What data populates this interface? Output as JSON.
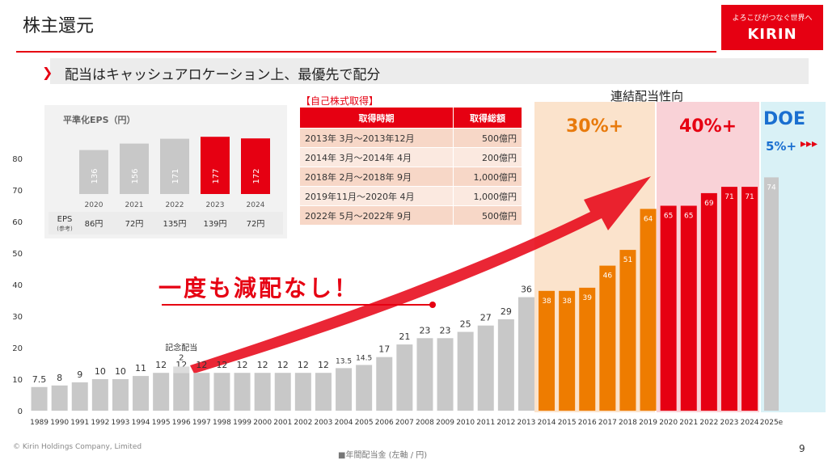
{
  "title": "株主還元",
  "logo": {
    "tagline": "よろこびがつなぐ世界へ",
    "wordmark": "KIRIN"
  },
  "subtitle": "配当はキャッシュアロケーション上、最優先で配分",
  "payout_heading": "連結配当性向",
  "payout_bands": {
    "band1": "30%+",
    "band2": "40%+",
    "doe_title": "DOE",
    "doe_value": "5%+",
    "doe_arrows": "▸▸▸"
  },
  "slogan": "一度も減配なし！",
  "commemorative_label": "記念配当",
  "buyback": {
    "title": "【自己株式取得】",
    "headers": [
      "取得時期",
      "取得総額"
    ],
    "rows": [
      {
        "period": "2013年 3月～2013年12月",
        "amount": "500億円"
      },
      {
        "period": "2014年 3月～2014年 4月",
        "amount": "200億円"
      },
      {
        "period": "2018年 2月～2018年 9月",
        "amount": "1,000億円"
      },
      {
        "period": "2019年11月～2020年 4月",
        "amount": "1,000億円"
      },
      {
        "period": "2022年 5月～2022年 9月",
        "amount": "500億円"
      }
    ]
  },
  "footer": {
    "copyright": "© Kirin Holdings Company, Limited",
    "legend": "■年間配当金 (左軸 / 円)",
    "page_number": "9"
  },
  "colors": {
    "brand_red": "#e60012",
    "orange": "#ee7c00",
    "grey": "#c8c8c8",
    "doe_blue": "#1a6fd0"
  },
  "chart_data": [
    {
      "type": "bar",
      "ylim": [
        0,
        80
      ],
      "yticks": [
        0,
        10,
        20,
        30,
        40,
        50,
        60,
        70,
        80
      ],
      "categories": [
        "1989",
        "1990",
        "1991",
        "1992",
        "1993",
        "1994",
        "1995",
        "1996",
        "1997",
        "1998",
        "1999",
        "2000",
        "2001",
        "2002",
        "2003",
        "2004",
        "2005",
        "2006",
        "2007",
        "2008",
        "2009",
        "2010",
        "2011",
        "2012",
        "2013",
        "2014",
        "2015",
        "2016",
        "2017",
        "2018",
        "2019",
        "2020",
        "2021",
        "2022",
        "2023",
        "2024",
        "2025e"
      ],
      "series": [
        {
          "name": "年間配当金 (左軸 / 円)",
          "values": [
            7.5,
            8,
            9,
            10,
            10,
            11,
            12,
            12,
            12,
            12,
            12,
            12,
            12,
            12,
            12,
            13.5,
            14.5,
            17,
            21,
            23,
            23,
            25,
            27,
            29,
            36,
            38,
            38,
            39,
            46,
            51,
            64,
            65,
            65,
            69,
            71,
            71,
            74
          ],
          "labels": [
            "7.5",
            "8",
            "9",
            "10",
            "10",
            "11",
            "12",
            "12",
            "12",
            "12",
            "12",
            "12",
            "12",
            "12",
            "12",
            "13.5",
            "14.5",
            "17",
            "21",
            "23",
            "23",
            "25",
            "27",
            "29",
            "36",
            "38",
            "38",
            "39",
            "46",
            "51",
            "64",
            "65",
            "65",
            "69",
            "71",
            "71",
            "74"
          ],
          "extra_1996": 2
        }
      ]
    },
    {
      "type": "bar",
      "title": "平準化EPS（円）",
      "categories": [
        "2020",
        "2021",
        "2022",
        "2023",
        "2024"
      ],
      "values": [
        136,
        156,
        171,
        177,
        172
      ],
      "labels": [
        "136",
        "156",
        "171",
        "177",
        "172"
      ],
      "highlight": [
        "2023",
        "2024"
      ],
      "eps_row": {
        "label": "EPS",
        "sublabel": "(参考)",
        "values": [
          "86円",
          "72円",
          "135円",
          "139円",
          "72円"
        ]
      }
    }
  ]
}
